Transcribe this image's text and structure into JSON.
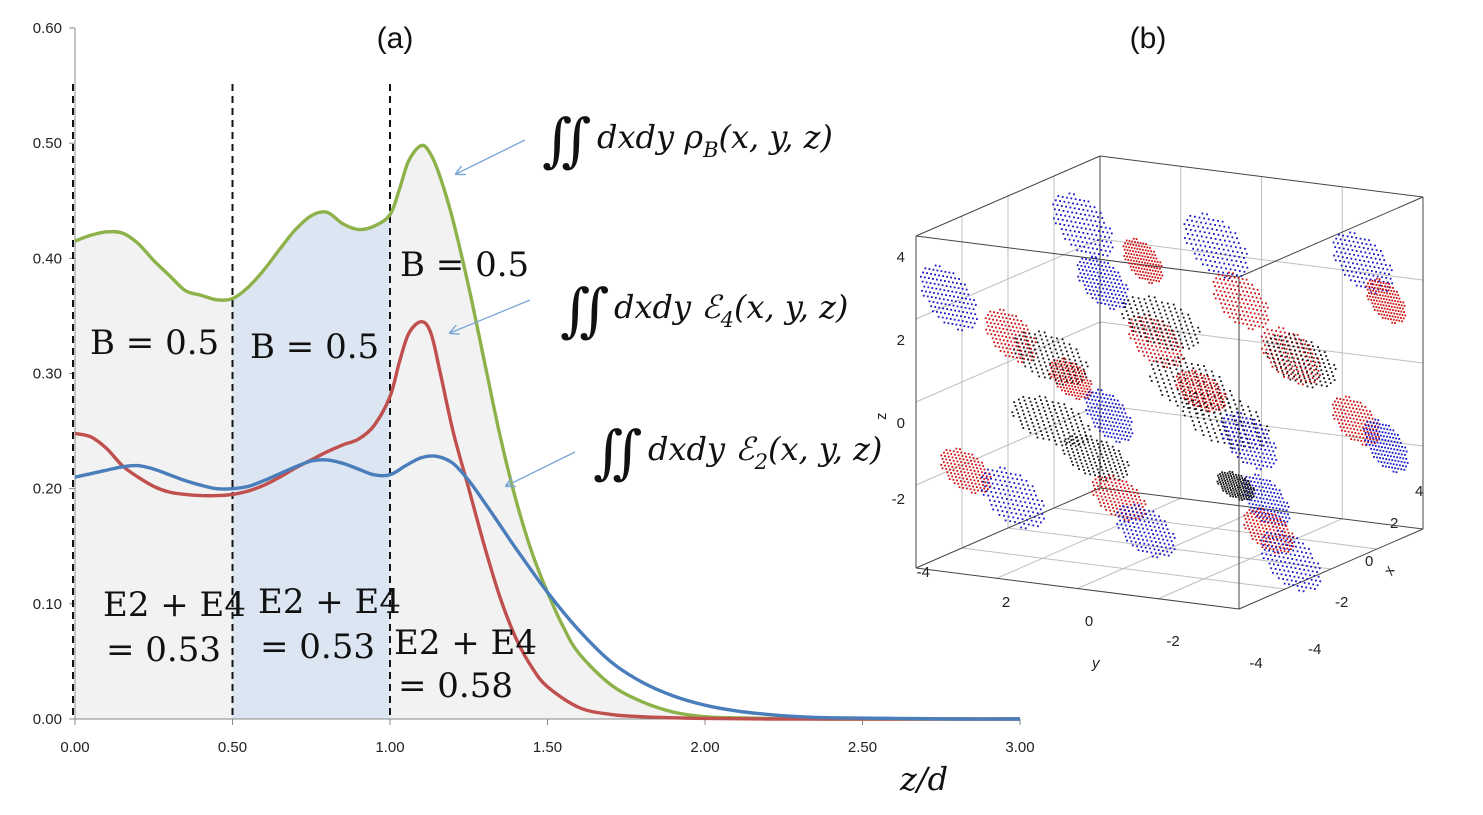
{
  "chart_data": [
    {
      "panel": "(a)",
      "type": "line",
      "xlabel": "z/d",
      "ylabel": "",
      "xlim": [
        0,
        3
      ],
      "ylim": [
        0,
        0.6
      ],
      "xticks": [
        "0.00",
        "0.50",
        "1.00",
        "1.50",
        "2.00",
        "2.50",
        "3.00"
      ],
      "yticks": [
        "0.00",
        "0.10",
        "0.20",
        "0.30",
        "0.40",
        "0.50",
        "0.60"
      ],
      "series": [
        {
          "name": "∬ dxdy ρB(x,y,z)",
          "color": "#8db24a",
          "x": [
            0,
            0.05,
            0.1,
            0.15,
            0.2,
            0.25,
            0.3,
            0.35,
            0.4,
            0.45,
            0.5,
            0.55,
            0.6,
            0.65,
            0.7,
            0.75,
            0.8,
            0.85,
            0.9,
            0.95,
            1.0,
            1.03,
            1.06,
            1.1,
            1.13,
            1.16,
            1.2,
            1.25,
            1.3,
            1.35,
            1.4,
            1.45,
            1.5,
            1.55,
            1.6,
            1.7,
            1.8,
            1.9,
            2.0,
            2.1,
            2.2,
            2.4,
            2.6,
            2.8,
            3.0
          ],
          "values": [
            0.415,
            0.42,
            0.423,
            0.422,
            0.413,
            0.398,
            0.385,
            0.372,
            0.368,
            0.364,
            0.365,
            0.375,
            0.39,
            0.408,
            0.425,
            0.437,
            0.44,
            0.43,
            0.425,
            0.428,
            0.438,
            0.46,
            0.485,
            0.498,
            0.49,
            0.47,
            0.433,
            0.375,
            0.31,
            0.245,
            0.19,
            0.145,
            0.11,
            0.08,
            0.057,
            0.03,
            0.015,
            0.006,
            0.002,
            0.001,
            0.0005,
            0,
            0,
            0,
            0
          ]
        },
        {
          "name": "∬ dxdy ℰ4(x,y,z)",
          "color": "#c0504d",
          "x": [
            0,
            0.05,
            0.1,
            0.15,
            0.2,
            0.25,
            0.3,
            0.35,
            0.4,
            0.45,
            0.5,
            0.55,
            0.6,
            0.65,
            0.7,
            0.75,
            0.8,
            0.85,
            0.9,
            0.95,
            1.0,
            1.03,
            1.06,
            1.1,
            1.13,
            1.16,
            1.2,
            1.25,
            1.3,
            1.35,
            1.4,
            1.45,
            1.5,
            1.6,
            1.7,
            1.8,
            1.9,
            2.0,
            2.2,
            2.4,
            2.6,
            2.8,
            3.0
          ],
          "values": [
            0.248,
            0.245,
            0.235,
            0.22,
            0.21,
            0.202,
            0.197,
            0.195,
            0.194,
            0.194,
            0.195,
            0.198,
            0.203,
            0.21,
            0.218,
            0.225,
            0.232,
            0.238,
            0.243,
            0.255,
            0.28,
            0.31,
            0.335,
            0.345,
            0.335,
            0.3,
            0.25,
            0.2,
            0.15,
            0.105,
            0.07,
            0.045,
            0.028,
            0.01,
            0.004,
            0.002,
            0.001,
            0.0005,
            0,
            0,
            0,
            0,
            0
          ]
        },
        {
          "name": "∬ dxdy ℰ2(x,y,z)",
          "color": "#4a7ebb",
          "x": [
            0,
            0.05,
            0.1,
            0.15,
            0.2,
            0.25,
            0.3,
            0.35,
            0.4,
            0.45,
            0.5,
            0.55,
            0.6,
            0.65,
            0.7,
            0.75,
            0.8,
            0.85,
            0.9,
            0.95,
            1.0,
            1.05,
            1.1,
            1.15,
            1.2,
            1.25,
            1.3,
            1.35,
            1.4,
            1.5,
            1.6,
            1.7,
            1.8,
            1.9,
            2.0,
            2.1,
            2.2,
            2.3,
            2.4,
            2.6,
            2.8,
            3.0
          ],
          "values": [
            0.21,
            0.213,
            0.216,
            0.219,
            0.22,
            0.217,
            0.212,
            0.207,
            0.203,
            0.2,
            0.2,
            0.202,
            0.207,
            0.213,
            0.219,
            0.224,
            0.225,
            0.222,
            0.217,
            0.212,
            0.212,
            0.22,
            0.227,
            0.228,
            0.222,
            0.207,
            0.188,
            0.168,
            0.148,
            0.11,
            0.077,
            0.05,
            0.032,
            0.02,
            0.012,
            0.007,
            0.004,
            0.002,
            0.001,
            0.0005,
            0,
            0
          ]
        }
      ],
      "dashed_lines_x": [
        0.0,
        0.5,
        1.0
      ],
      "shaded_regions": [
        {
          "from": 0.0,
          "to": 0.5,
          "color": "#f2f2f2"
        },
        {
          "from": 0.5,
          "to": 1.0,
          "color": "#dce6f2"
        },
        {
          "from": 1.0,
          "to": 3.0,
          "color": "#f2f2f2",
          "under": "∬ dxdy ρB(x,y,z)"
        }
      ],
      "annotations": {
        "b_region1": "B = 0.5",
        "b_region2": "B = 0.5",
        "b_region3": "B = 0.5",
        "e_region1_line1": "E2 + E4",
        "e_region1_line2": "= 0.53",
        "e_region2_line1": "E2 + E4",
        "e_region2_line2": "= 0.53",
        "e_region3_line1": "E2 + E4",
        "e_region3_line2": "= 0.58"
      }
    },
    {
      "panel": "(b)",
      "type": "scatter",
      "dimensions": 3,
      "xlabel": "x",
      "ylabel": "y",
      "zlabel": "z",
      "xlim": [
        -4,
        4
      ],
      "ylim": [
        -4,
        4
      ],
      "zlim": [
        -4,
        4
      ],
      "x_ticks": [
        "4",
        "2",
        "0",
        "-2",
        "-4"
      ],
      "y_ticks": [
        "2",
        "0",
        "-2",
        "-4"
      ],
      "z_ticks": [
        "4",
        "2",
        "0",
        "-2",
        "-4"
      ],
      "point_colors": [
        "#1515c8",
        "#d01010",
        "#111111"
      ]
    }
  ],
  "labels": {
    "panel_a": "(a)",
    "panel_b": "(b)",
    "x_axis_label": "z/d",
    "integral_rho": {
      "sym": "∬",
      "text1": "dxdy ",
      "main": "ρ",
      "sub": "B",
      "text2": "(x, y, z)"
    },
    "integral_e4": {
      "sym": "∬",
      "text1": "dxdy ",
      "main": "ℰ",
      "sub": "4",
      "text2": "(x, y, z)"
    },
    "integral_e2": {
      "sym": "∬",
      "text1": "dxdy ",
      "main": "ℰ",
      "sub": "2",
      "text2": "(x, y, z)"
    },
    "arrow_color": "#7aa7d6"
  }
}
